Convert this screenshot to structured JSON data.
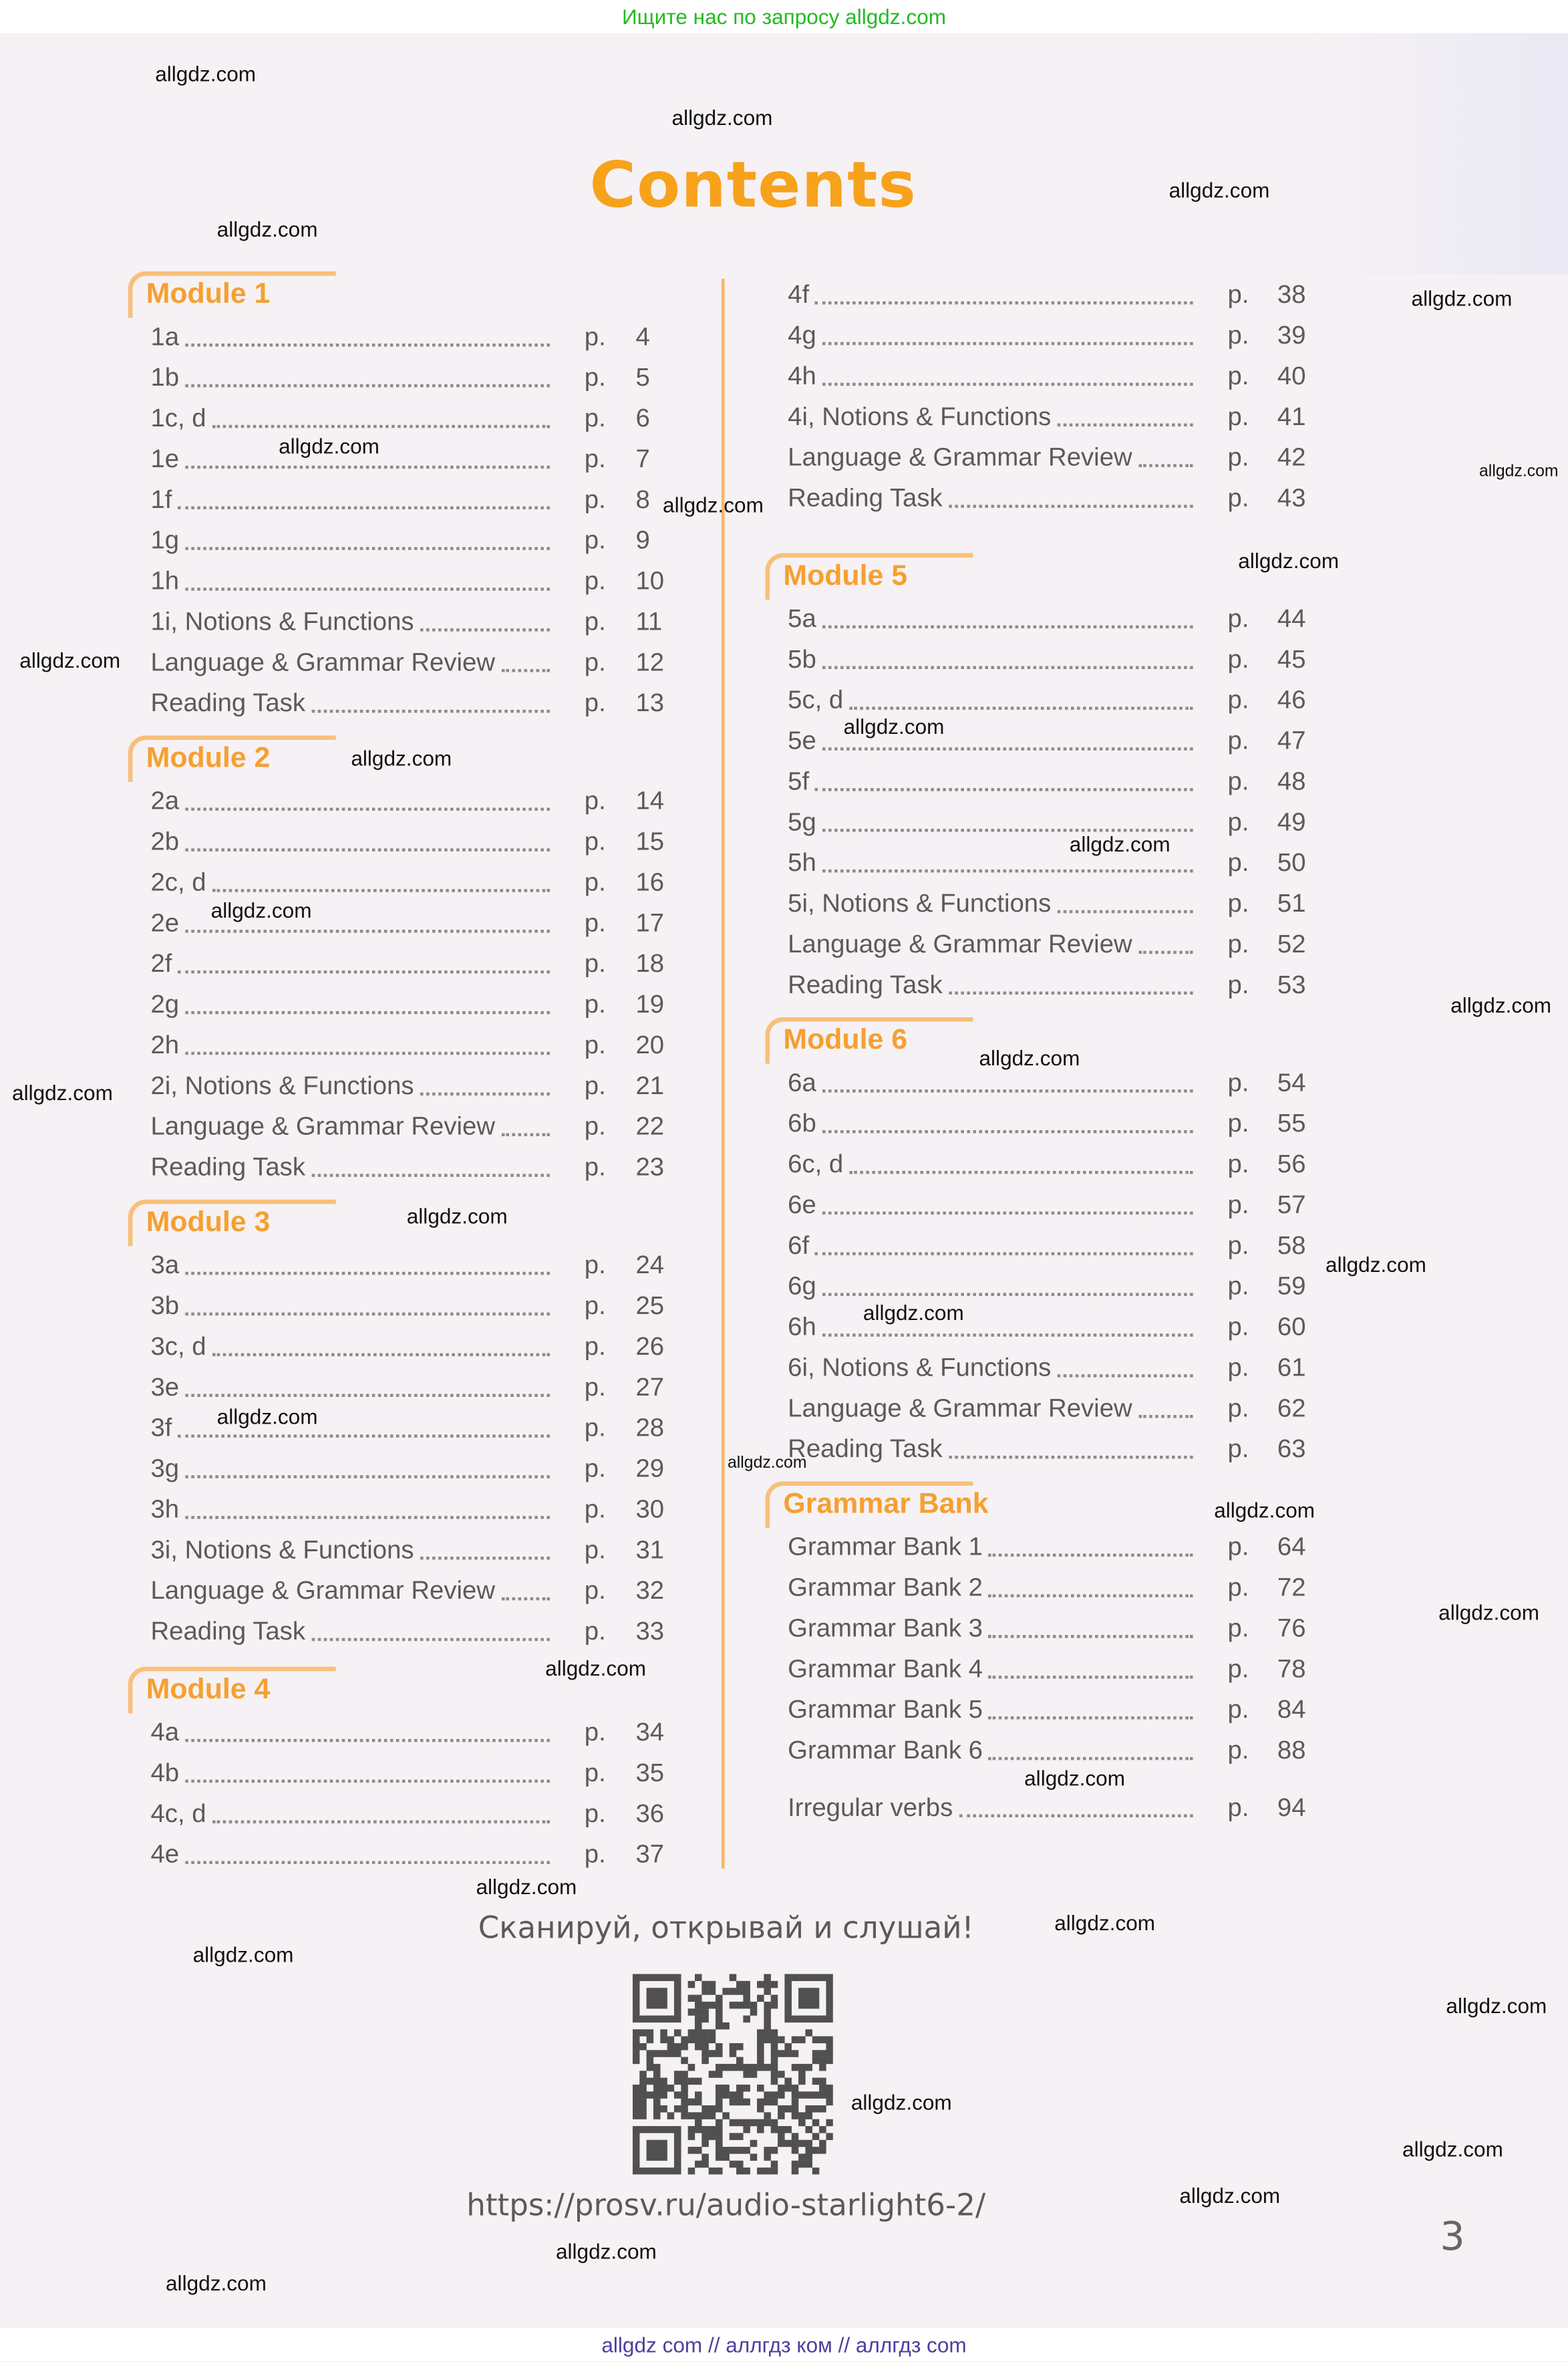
{
  "top_banner": "Ищите нас по запросу allgdz.com",
  "bottom_banner": "allgdz com  //  аллгдз ком  //  аллгдз com",
  "title": "Contents",
  "page_label": "p.",
  "left_column": [
    {
      "module": "Module 1",
      "entries": [
        {
          "label": "1a",
          "page": "4"
        },
        {
          "label": "1b",
          "page": "5"
        },
        {
          "label": "1c, d",
          "page": "6"
        },
        {
          "label": "1e",
          "page": "7"
        },
        {
          "label": "1f",
          "page": "8"
        },
        {
          "label": "1g",
          "page": "9"
        },
        {
          "label": "1h",
          "page": "10"
        },
        {
          "label": "1i, Notions & Functions",
          "page": "11"
        },
        {
          "label": "Language & Grammar Review",
          "page": "12"
        },
        {
          "label": "Reading Task",
          "page": "13"
        }
      ]
    },
    {
      "module": "Module 2",
      "entries": [
        {
          "label": "2a",
          "page": "14"
        },
        {
          "label": "2b",
          "page": "15"
        },
        {
          "label": "2c, d",
          "page": "16"
        },
        {
          "label": "2e",
          "page": "17"
        },
        {
          "label": "2f",
          "page": "18"
        },
        {
          "label": "2g",
          "page": "19"
        },
        {
          "label": "2h",
          "page": "20"
        },
        {
          "label": "2i, Notions & Functions",
          "page": "21"
        },
        {
          "label": "Language & Grammar Review",
          "page": "22"
        },
        {
          "label": "Reading Task",
          "page": "23"
        }
      ]
    },
    {
      "module": "Module 3",
      "entries": [
        {
          "label": "3a",
          "page": "24"
        },
        {
          "label": "3b",
          "page": "25"
        },
        {
          "label": "3c, d",
          "page": "26"
        },
        {
          "label": "3e",
          "page": "27"
        },
        {
          "label": "3f",
          "page": "28"
        },
        {
          "label": "3g",
          "page": "29"
        },
        {
          "label": "3h",
          "page": "30"
        },
        {
          "label": "3i, Notions & Functions",
          "page": "31"
        },
        {
          "label": "Language & Grammar Review",
          "page": "32"
        },
        {
          "label": "Reading Task",
          "page": "33"
        }
      ]
    },
    {
      "module": "Module 4",
      "entries": [
        {
          "label": "4a",
          "page": "34"
        },
        {
          "label": "4b",
          "page": "35"
        },
        {
          "label": "4c, d",
          "page": "36"
        },
        {
          "label": "4e",
          "page": "37"
        }
      ]
    }
  ],
  "right_column": [
    {
      "module": "",
      "entries": [
        {
          "label": "4f",
          "page": "38"
        },
        {
          "label": "4g",
          "page": "39"
        },
        {
          "label": "4h",
          "page": "40"
        },
        {
          "label": "4i, Notions & Functions",
          "page": "41"
        },
        {
          "label": "Language & Grammar Review",
          "page": "42"
        },
        {
          "label": "Reading Task",
          "page": "43"
        }
      ]
    },
    {
      "module": "Module 5",
      "entries": [
        {
          "label": "5a",
          "page": "44"
        },
        {
          "label": "5b",
          "page": "45"
        },
        {
          "label": "5c, d",
          "page": "46"
        },
        {
          "label": "5e",
          "page": "47"
        },
        {
          "label": "5f",
          "page": "48"
        },
        {
          "label": "5g",
          "page": "49"
        },
        {
          "label": "5h",
          "page": "50"
        },
        {
          "label": "5i, Notions & Functions",
          "page": "51"
        },
        {
          "label": "Language & Grammar Review",
          "page": "52"
        },
        {
          "label": "Reading Task",
          "page": "53"
        }
      ]
    },
    {
      "module": "Module 6",
      "entries": [
        {
          "label": "6a",
          "page": "54"
        },
        {
          "label": "6b",
          "page": "55"
        },
        {
          "label": "6c, d",
          "page": "56"
        },
        {
          "label": "6e",
          "page": "57"
        },
        {
          "label": "6f",
          "page": "58"
        },
        {
          "label": "6g",
          "page": "59"
        },
        {
          "label": "6h",
          "page": "60"
        },
        {
          "label": "6i, Notions & Functions",
          "page": "61"
        },
        {
          "label": "Language & Grammar Review",
          "page": "62"
        },
        {
          "label": "Reading Task",
          "page": "63"
        }
      ]
    },
    {
      "module": "Grammar Bank",
      "entries": [
        {
          "label": "Grammar Bank 1",
          "page": "64"
        },
        {
          "label": "Grammar Bank 2",
          "page": "72"
        },
        {
          "label": "Grammar Bank 3",
          "page": "76"
        },
        {
          "label": "Grammar Bank 4",
          "page": "78"
        },
        {
          "label": "Grammar Bank 5",
          "page": "84"
        },
        {
          "label": "Grammar Bank 6",
          "page": "88"
        }
      ]
    },
    {
      "module": "",
      "entries": [
        {
          "label": "Irregular verbs",
          "page": "94"
        }
      ]
    }
  ],
  "scan_prompt": "Сканируй, открывай и слушай!",
  "audio_url": "https://prosv.ru/audio-starlight6-2/",
  "page_number": "3",
  "watermark": "allgdz.com",
  "colors": {
    "accent": "#f7a21b",
    "text": "#5a5a5a",
    "banner_green": "#22bb22",
    "banner_blue": "#4b3fa0"
  }
}
